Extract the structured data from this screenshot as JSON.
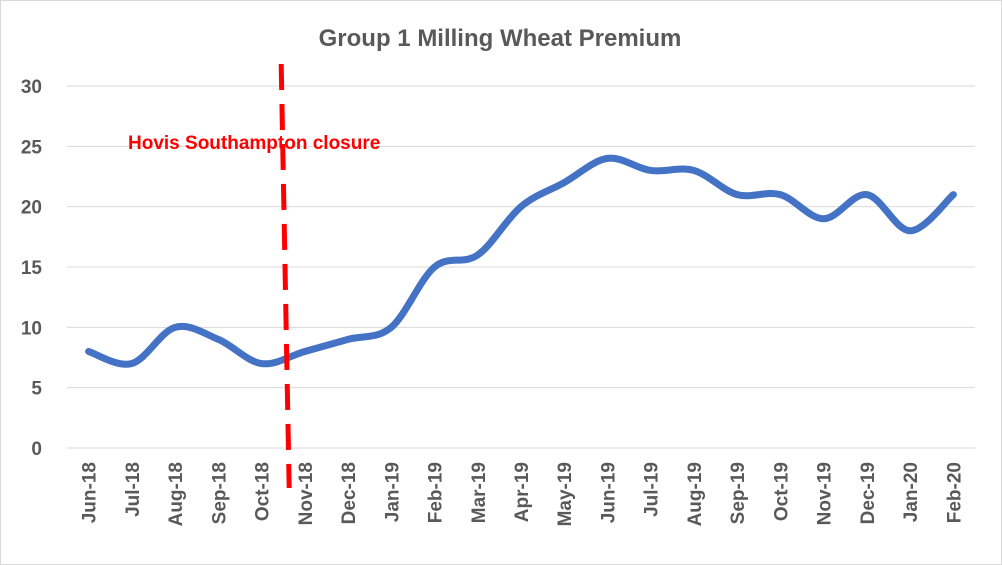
{
  "chart_data": {
    "type": "line",
    "title": "Group 1 Milling Wheat Premium",
    "xlabel": "",
    "ylabel": "",
    "categories": [
      "Jun-18",
      "Jul-18",
      "Aug-18",
      "Sep-18",
      "Oct-18",
      "Nov-18",
      "Dec-18",
      "Jan-19",
      "Feb-19",
      "Mar-19",
      "Apr-19",
      "May-19",
      "Jun-19",
      "Jul-19",
      "Aug-19",
      "Sep-19",
      "Oct-19",
      "Nov-19",
      "Dec-19",
      "Jan-20",
      "Feb-20"
    ],
    "series": [
      {
        "values": [
          8,
          7,
          10,
          9,
          7,
          8,
          9,
          10,
          15,
          16,
          20,
          22,
          24,
          23,
          23,
          21,
          21,
          19,
          21,
          18,
          21
        ]
      }
    ],
    "ylim": [
      0,
      30
    ],
    "yticks": [
      "0",
      "5",
      "10",
      "15",
      "20",
      "25",
      "30"
    ],
    "grid": true,
    "legend": "none",
    "line_color": "#4472c4",
    "annotation": {
      "text": "Hovis Southampton closure",
      "color": "#ff0000",
      "marker_between": [
        "Oct-18",
        "Nov-18"
      ]
    }
  }
}
